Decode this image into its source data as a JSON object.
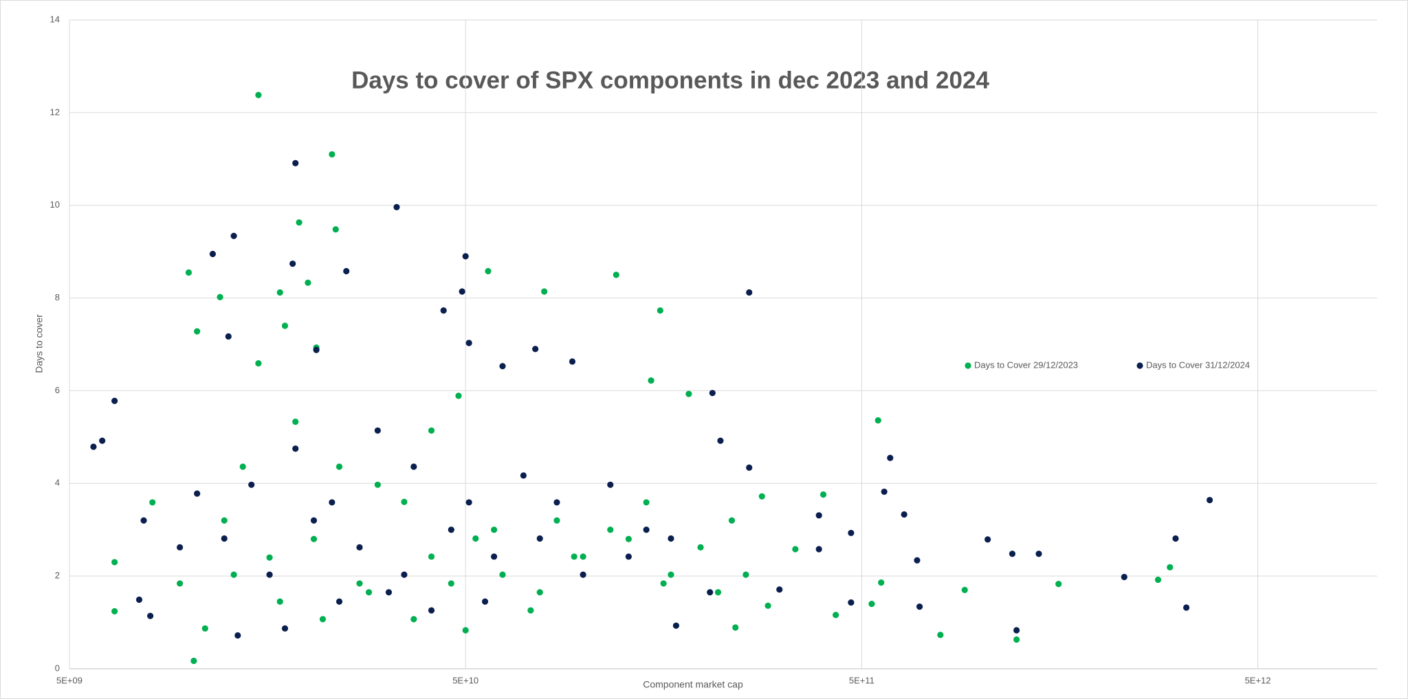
{
  "chart_data": {
    "type": "scatter",
    "title": "Days to cover of SPX components in dec 2023 and 2024",
    "x_label": "Component market cap",
    "y_label": "Days to cover",
    "xscale": "log",
    "grid": true,
    "legend": "right",
    "xlim": [
      5000000000.0,
      10000000000000.0
    ],
    "xticks": [
      {
        "value": 5000000000.0,
        "label": "5E+09"
      },
      {
        "value": 50000000000.0,
        "label": "5E+10"
      },
      {
        "value": 500000000000.0,
        "label": "5E+11"
      },
      {
        "value": 5000000000000.0,
        "label": "5E+12"
      }
    ],
    "ylim": [
      0,
      14
    ],
    "yticks": [
      0,
      2,
      4,
      6,
      8,
      10,
      12,
      14
    ],
    "series": [
      {
        "name": "Days to Cover 29/12/2023",
        "color": "#00b050",
        "x": [
          15000000000.0,
          23000000000.0,
          19000000000.0,
          23500000000.0,
          10000000000.0,
          12000000000.0,
          17000000000.0,
          20000000000.0,
          57000000000.0,
          79000000000.0,
          120000000000.0,
          155000000000.0,
          10500000000.0,
          17500000000.0,
          21000000000.0,
          147000000000.0,
          15000000000.0,
          183000000000.0,
          550000000000.0,
          48000000000.0,
          1230000000000.0,
          790000000000.0,
          1570000000000.0,
          2800000000000.0,
          3000000000000.0,
          910000000000.0,
          10300000000.0,
          6500000000.0,
          6500000000.0,
          400000000000.0,
          280000000000.0,
          240000000000.0,
          530000000000.0,
          560000000000.0,
          430000000000.0,
          340000000000.0,
          290000000000.0,
          50000000000.0,
          12300000000.0,
          16000000000.0,
          20700000000.0,
          27000000000.0,
          35000000000.0,
          41000000000.0,
          59000000000.0,
          77000000000.0,
          99000000000.0,
          129000000000.0,
          165000000000.0,
          217000000000.0,
          9500000000.0,
          8100000000.0,
          11000000000.0,
          24000000000.0,
          30000000000.0,
          41000000000.0,
          13700000000.0,
          18600000000.0,
          62000000000.0,
          85000000000.0,
          116000000000.0,
          143000000000.0,
          196000000000.0,
          235000000000.0,
          255000000000.0,
          37000000000.0,
          28500000000.0,
          21800000000.0,
          17000000000.0,
          13000000000.0,
          46000000000.0,
          53000000000.0,
          73000000000.0,
          94000000000.0,
          158000000000.0
        ],
        "values": [
          12.38,
          11.1,
          9.63,
          9.48,
          8.55,
          8.02,
          8.12,
          8.33,
          8.58,
          8.14,
          8.5,
          7.73,
          7.28,
          7.4,
          6.93,
          6.22,
          6.59,
          5.93,
          5.36,
          5.89,
          0.63,
          0.73,
          1.83,
          1.92,
          2.19,
          1.7,
          0.17,
          1.24,
          2.3,
          3.76,
          3.72,
          0.89,
          1.4,
          1.86,
          1.16,
          2.58,
          1.36,
          0.83,
          3.2,
          2.4,
          2.8,
          1.84,
          3.6,
          2.42,
          3.0,
          1.65,
          2.42,
          2.8,
          2.03,
          1.65,
          1.84,
          3.59,
          0.87,
          4.36,
          3.97,
          5.14,
          4.36,
          5.33,
          2.03,
          3.2,
          3.0,
          3.59,
          2.62,
          3.2,
          2.03,
          1.07,
          1.65,
          1.07,
          1.45,
          2.03,
          1.84,
          2.81,
          1.26,
          2.42,
          1.84
        ]
      },
      {
        "name": "Days to Cover 31/12/2024",
        "color": "#0b1f4f",
        "x": [
          5750000000.0,
          6050000000.0,
          6500000000.0,
          18600000000.0,
          33500000000.0,
          13000000000.0,
          11500000000.0,
          18300000000.0,
          25000000000.0,
          50000000000.0,
          49000000000.0,
          260000000000.0,
          44000000000.0,
          12600000000.0,
          51000000000.0,
          21000000000.0,
          75000000000.0,
          93000000000.0,
          62000000000.0,
          210000000000.0,
          590000000000.0,
          570000000000.0,
          640000000000.0,
          690000000000.0,
          700000000000.0,
          1040000000000.0,
          1200000000000.0,
          1400000000000.0,
          1230000000000.0,
          2300000000000.0,
          3100000000000.0,
          3300000000000.0,
          3780000000000.0,
          470000000000.0,
          390000000000.0,
          470000000000.0,
          390000000000.0,
          310000000000.0,
          260000000000.0,
          220000000000.0,
          13300000000.0,
          17500000000.0,
          8000000000.0,
          7500000000.0,
          170000000000.0,
          12300000000.0,
          16000000000.0,
          20700000000.0,
          27000000000.0,
          35000000000.0,
          46000000000.0,
          59000000000.0,
          77000000000.0,
          99000000000.0,
          129000000000.0,
          165000000000.0,
          207000000000.0,
          14400000000.0,
          18600000000.0,
          23000000000.0,
          30000000000.0,
          37000000000.0,
          51000000000.0,
          70000000000.0,
          85000000000.0,
          116000000000.0,
          143000000000.0,
          9500000000.0,
          7700000000.0,
          10500000000.0,
          32000000000.0,
          41000000000.0,
          24000000000.0,
          56000000000.0
        ],
        "values": [
          4.79,
          4.92,
          5.78,
          10.91,
          9.96,
          9.34,
          8.95,
          8.74,
          8.58,
          8.9,
          8.14,
          8.12,
          7.73,
          7.17,
          7.03,
          6.88,
          6.9,
          6.63,
          6.53,
          5.95,
          4.55,
          3.82,
          3.33,
          2.34,
          1.34,
          2.79,
          2.48,
          2.48,
          0.83,
          1.98,
          2.81,
          1.32,
          3.64,
          2.93,
          3.31,
          1.43,
          2.58,
          1.71,
          4.34,
          4.92,
          0.72,
          0.87,
          1.14,
          1.49,
          0.93,
          2.81,
          2.03,
          3.2,
          2.62,
          2.03,
          3.0,
          2.42,
          2.81,
          2.03,
          2.42,
          2.81,
          1.65,
          3.97,
          4.75,
          3.59,
          5.14,
          4.36,
          3.59,
          4.17,
          3.59,
          3.97,
          3.0,
          2.62,
          3.2,
          3.78,
          1.65,
          1.26,
          1.45,
          1.45
        ]
      }
    ]
  }
}
